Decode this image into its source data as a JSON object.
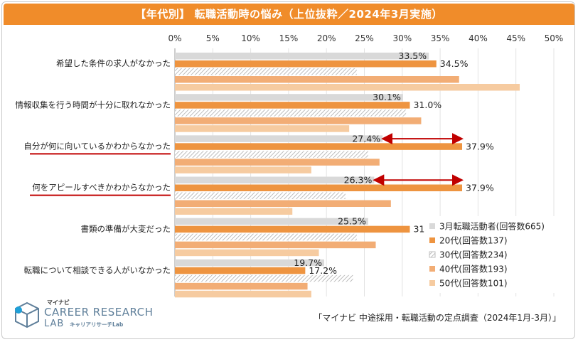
{
  "title": "【年代別】 転職活動時の悩み（上位抜粋／2024年3月実施）",
  "source": "「マイナビ 中途採用・転職活動の定点調査（2024年1月-3月）」",
  "logo": {
    "brand": "マイナビ",
    "name": "CAREER RESEARCH",
    "lab": "LAB",
    "sub": "キャリアリサーチLab"
  },
  "colors": {
    "title_bg": "#f08c2a",
    "s_all": "#d9d9d9",
    "s_20": "#ee9440",
    "s_30": "#d4d4d4",
    "s_40": "#f2ad75",
    "s_50": "#f6cba0",
    "highlight": "#c00000"
  },
  "chart_data": {
    "type": "bar",
    "orientation": "horizontal",
    "title": "【年代別】 転職活動時の悩み（上位抜粋／2024年3月実施）",
    "xlim": [
      0,
      50
    ],
    "xticks": [
      "0%",
      "5%",
      "10%",
      "15%",
      "20%",
      "25%",
      "30%",
      "35%",
      "40%",
      "45%",
      "50%"
    ],
    "categories": [
      "希望した条件の求人がなかった",
      "情報収集を行う時間が十分に取れなかった",
      "自分が何に向いているかわからなかった",
      "何をアピールすべきかわからなかった",
      "書類の準備が大変だった",
      "転職について相談できる人がいなかった"
    ],
    "highlighted_categories": [
      2,
      3
    ],
    "series": [
      {
        "name": "3月転職活動者(回答数665)",
        "values": [
          33.5,
          30.1,
          27.4,
          26.3,
          25.5,
          19.7
        ],
        "labels": [
          "33.5%",
          "30.1%",
          "27.4%",
          "26.3%",
          "25.5%",
          "19.7%"
        ]
      },
      {
        "name": "20代(回答数137)",
        "values": [
          34.5,
          31.0,
          37.9,
          37.9,
          31.0,
          17.2
        ],
        "labels": [
          "34.5%",
          "31.0%",
          "37.9%",
          "37.9%",
          "31.0%",
          "17.2%"
        ]
      },
      {
        "name": "30代(回答数234)",
        "values": [
          24.0,
          30.5,
          25.5,
          22.5,
          24.0,
          23.5
        ]
      },
      {
        "name": "40代(回答数193)",
        "values": [
          37.5,
          32.5,
          27.0,
          28.5,
          26.5,
          17.5
        ]
      },
      {
        "name": "50代(回答数101)",
        "values": [
          45.5,
          23.0,
          18.0,
          15.5,
          19.0,
          18.0
        ]
      }
    ],
    "arrows": [
      {
        "category": 2,
        "from": 27.4,
        "to": 37.9
      },
      {
        "category": 3,
        "from": 26.3,
        "to": 37.9
      }
    ]
  }
}
